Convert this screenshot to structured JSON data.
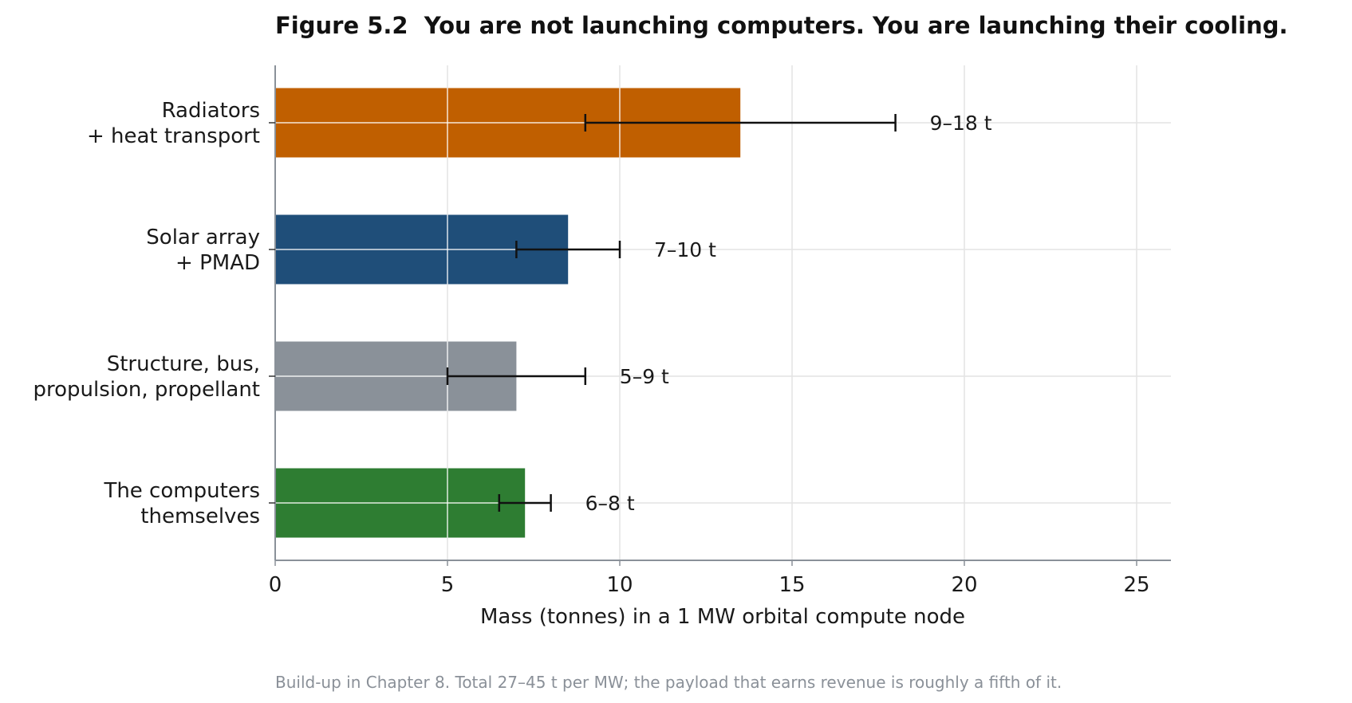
{
  "chart_data": {
    "type": "bar",
    "orientation": "horizontal",
    "title": "Figure 5.2  You are not launching computers. You are launching their cooling.",
    "xlabel": "Mass (tonnes) in a 1 MW orbital compute node",
    "ylabel": "",
    "xlim": [
      0,
      26
    ],
    "xticks": [
      0,
      5,
      10,
      15,
      20,
      25
    ],
    "grid": "vertical",
    "caption": "Build-up in Chapter 8. Total 27–45 t per MW; the payload that earns revenue is roughly a fifth of it.",
    "categories": [
      {
        "lines": [
          "Radiators",
          "+ heat transport"
        ]
      },
      {
        "lines": [
          "Solar array",
          "+ PMAD"
        ]
      },
      {
        "lines": [
          "Structure, bus,",
          "propulsion, propellant"
        ]
      },
      {
        "lines": [
          "The computers",
          "themselves"
        ]
      }
    ],
    "bars": [
      {
        "value": 13.5,
        "err_low": 9,
        "err_high": 18,
        "range_label": "9–18 t",
        "color": "#c05f00"
      },
      {
        "value": 8.5,
        "err_low": 7,
        "err_high": 10,
        "range_label": "7–10 t",
        "color": "#1f4e79"
      },
      {
        "value": 7,
        "err_low": 5,
        "err_high": 9,
        "range_label": "5–9 t",
        "color": "#8a9199"
      },
      {
        "value": 7.25,
        "err_low": 6.5,
        "err_high": 8,
        "range_label": "6–8 t",
        "color": "#2e7d32"
      }
    ]
  }
}
